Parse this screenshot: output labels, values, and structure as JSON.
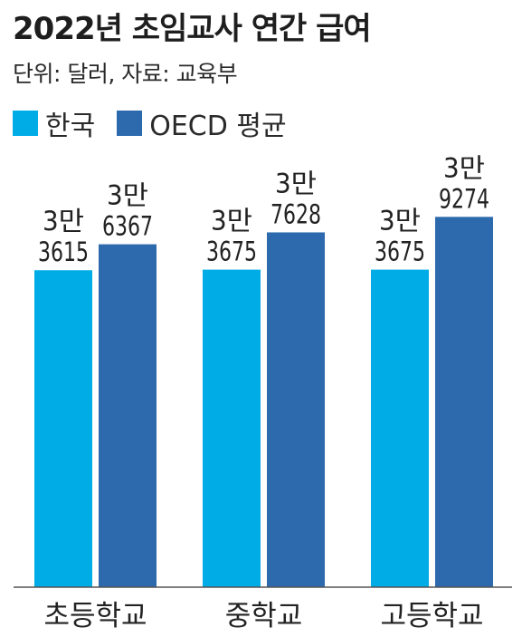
{
  "chart_data": {
    "type": "bar",
    "title": "2022년 초임교사 연간 급여",
    "subtitle": "단위: 달러, 자료: 교육부",
    "categories": [
      "초등학교",
      "중학교",
      "고등학교"
    ],
    "series": [
      {
        "name": "한국",
        "color": "#00ace6",
        "values": [
          33615,
          33675,
          33675
        ],
        "labels": [
          [
            "3만",
            "3615"
          ],
          [
            "3만",
            "3675"
          ],
          [
            "3만",
            "3675"
          ]
        ]
      },
      {
        "name": "OECD 평균",
        "color": "#2d69ad",
        "values": [
          36367,
          37628,
          39274
        ],
        "labels": [
          [
            "3만",
            "6367"
          ],
          [
            "3만",
            "7628"
          ],
          [
            "3만",
            "9274"
          ]
        ]
      }
    ],
    "ylim": [
      0,
      45000
    ],
    "legend_position": "top-left",
    "grid": false
  }
}
